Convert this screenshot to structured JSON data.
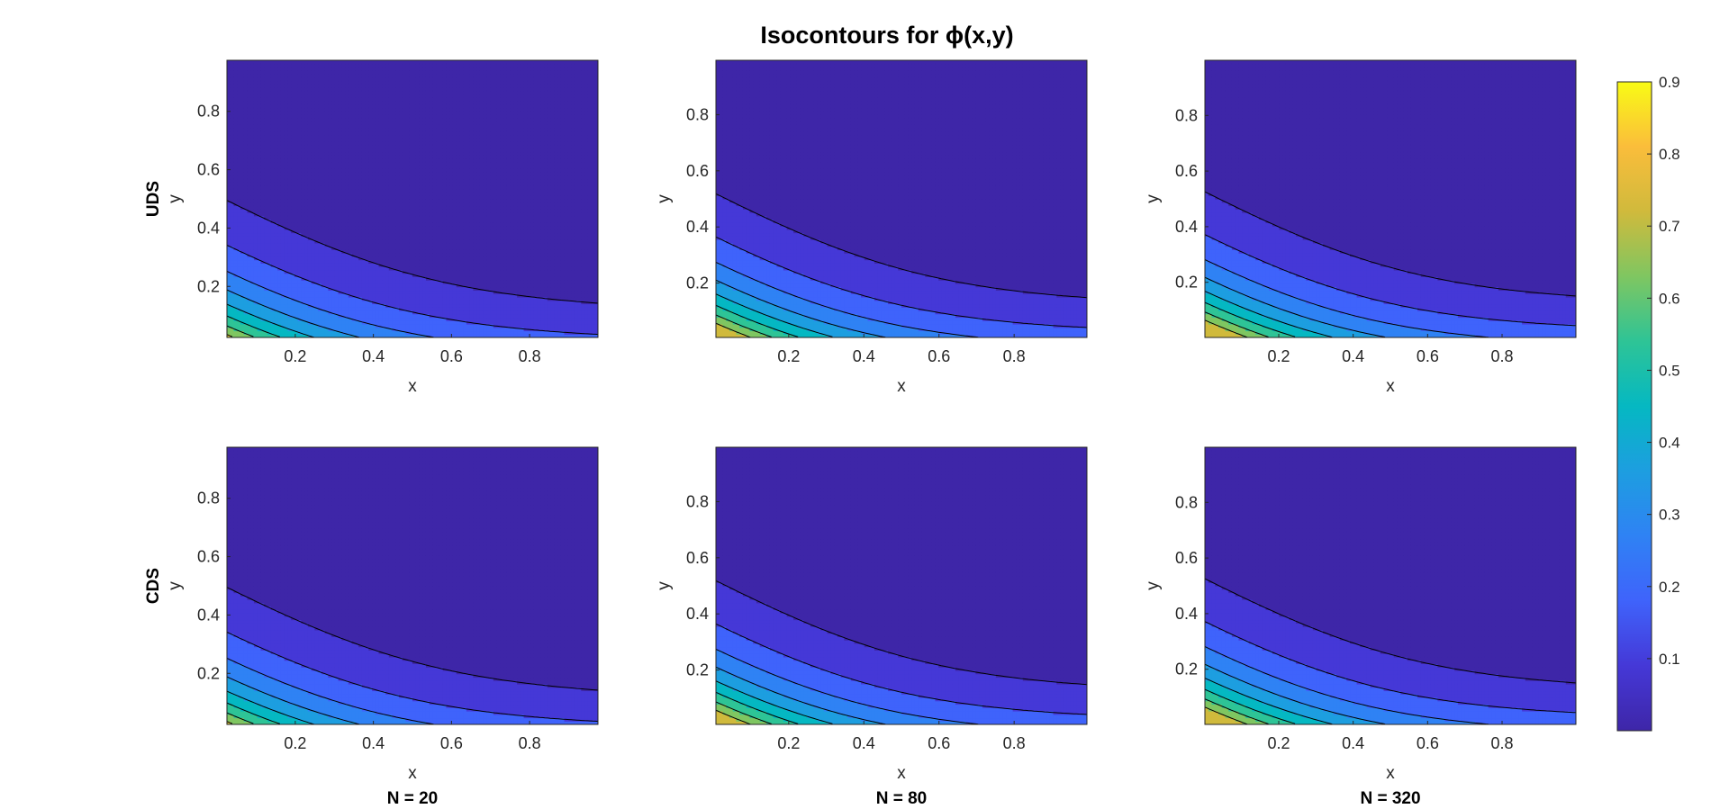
{
  "figure": {
    "title": "Isocontours for ϕ(x,y)"
  },
  "colors": {
    "levels": [
      "#3e26a8",
      "#4538d7",
      "#3f63fb",
      "#2f82f4",
      "#1d9ee0",
      "#05b8c2",
      "#2ec496",
      "#7fc661",
      "#d0ba3c",
      "#fabd3b",
      "#f9fb15"
    ],
    "contour_line": "#000000",
    "axes_box": "#262626"
  },
  "chart_data": [
    {
      "type": "contour",
      "panel": "UDS, N = 20",
      "row_label": "UDS",
      "column_label": "",
      "xlabel": "x",
      "ylabel": "y",
      "xlim": [
        0.025,
        0.975
      ],
      "ylim": [
        0.025,
        0.975
      ],
      "xticks": [
        "0.2",
        "0.4",
        "0.6",
        "0.8"
      ],
      "yticks": [
        "0.2",
        "0.4",
        "0.6",
        "0.8"
      ],
      "levels": [
        0.1,
        0.2,
        0.3,
        0.4,
        0.5,
        0.6,
        0.7,
        0.8
      ],
      "field_scale": 1.0
    },
    {
      "type": "contour",
      "panel": "UDS, N = 80",
      "row_label": "",
      "column_label": "",
      "xlabel": "x",
      "ylabel": "y",
      "xlim": [
        0.00625,
        0.99375
      ],
      "ylim": [
        0.00625,
        0.99375
      ],
      "xticks": [
        "0.2",
        "0.4",
        "0.6",
        "0.8"
      ],
      "yticks": [
        "0.2",
        "0.4",
        "0.6",
        "0.8"
      ],
      "levels": [
        0.1,
        0.2,
        0.3,
        0.4,
        0.5,
        0.6,
        0.7,
        0.8
      ],
      "field_scale": 1.05
    },
    {
      "type": "contour",
      "panel": "UDS, N = 320",
      "row_label": "",
      "column_label": "",
      "xlabel": "x",
      "ylabel": "y",
      "xlim": [
        0.0016,
        0.9984
      ],
      "ylim": [
        0.0016,
        0.9984
      ],
      "xticks": [
        "0.2",
        "0.4",
        "0.6",
        "0.8"
      ],
      "yticks": [
        "0.2",
        "0.4",
        "0.6",
        "0.8"
      ],
      "levels": [
        0.1,
        0.2,
        0.3,
        0.4,
        0.5,
        0.6,
        0.7,
        0.8
      ],
      "field_scale": 1.07
    },
    {
      "type": "contour",
      "panel": "CDS, N = 20",
      "row_label": "CDS",
      "column_label": "N = 20",
      "xlabel": "x",
      "ylabel": "y",
      "xlim": [
        0.025,
        0.975
      ],
      "ylim": [
        0.025,
        0.975
      ],
      "xticks": [
        "0.2",
        "0.4",
        "0.6",
        "0.8"
      ],
      "yticks": [
        "0.2",
        "0.4",
        "0.6",
        "0.8"
      ],
      "levels": [
        0.1,
        0.2,
        0.3,
        0.4,
        0.5,
        0.6,
        0.7,
        0.8
      ],
      "field_scale": 1.0
    },
    {
      "type": "contour",
      "panel": "CDS, N = 80",
      "row_label": "",
      "column_label": "N = 80",
      "xlabel": "x",
      "ylabel": "y",
      "xlim": [
        0.00625,
        0.99375
      ],
      "ylim": [
        0.00625,
        0.99375
      ],
      "xticks": [
        "0.2",
        "0.4",
        "0.6",
        "0.8"
      ],
      "yticks": [
        "0.2",
        "0.4",
        "0.6",
        "0.8"
      ],
      "levels": [
        0.1,
        0.2,
        0.3,
        0.4,
        0.5,
        0.6,
        0.7,
        0.8
      ],
      "field_scale": 1.05
    },
    {
      "type": "contour",
      "panel": "CDS, N = 320",
      "row_label": "",
      "column_label": "N = 320",
      "xlabel": "x",
      "ylabel": "y",
      "xlim": [
        0.0016,
        0.9984
      ],
      "ylim": [
        0.0016,
        0.9984
      ],
      "xticks": [
        "0.2",
        "0.4",
        "0.6",
        "0.8"
      ],
      "yticks": [
        "0.2",
        "0.4",
        "0.6",
        "0.8"
      ],
      "levels": [
        0.1,
        0.2,
        0.3,
        0.4,
        0.5,
        0.6,
        0.7,
        0.8
      ],
      "field_scale": 1.07
    },
    {
      "type": "colorbar",
      "range": [
        0.0,
        0.9
      ],
      "ticks": [
        "0.1",
        "0.2",
        "0.3",
        "0.4",
        "0.5",
        "0.6",
        "0.7",
        "0.8",
        "0.9"
      ]
    }
  ]
}
